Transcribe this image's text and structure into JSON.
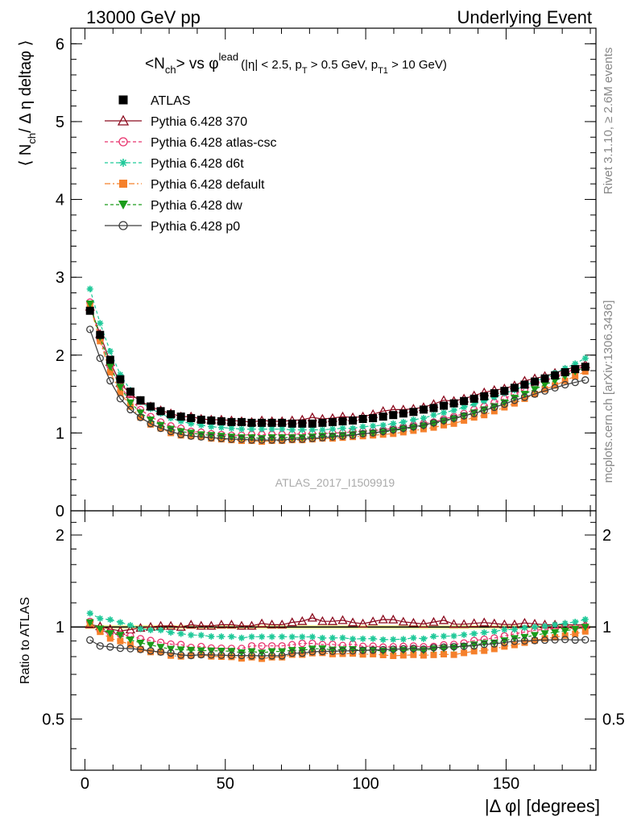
{
  "header": {
    "left": "13000 GeV pp",
    "right": "Underlying Event"
  },
  "side_labels": {
    "rivet": "Rivet 3.1.10, ≥ 2.6M events",
    "mcplots": "mcplots.cern.ch [arXiv:1306.3436]"
  },
  "analysis_id": "ATLAS_2017_I1509919",
  "colors": {
    "ATLAS": "#000000",
    "370": "#8b0a1e",
    "atlas-csc": "#e8336d",
    "d6t": "#1fc999",
    "default": "#f5802b",
    "dw": "#1a9c1a",
    "p0": "#3c3c3c",
    "band": "#f4f5a0"
  },
  "chart_data": [
    {
      "type": "scatter",
      "panel": "main",
      "title_main": "<N",
      "title_sub": "ch",
      "title_mid": "> vs φ",
      "title_sup": "lead",
      "title_cuts": "(|η| < 2.5, p",
      "title_cuts_sub1": "T",
      "title_cuts_mid": " > 0.5 GeV, p",
      "title_cuts_sub2": "T1",
      "title_cuts_end": " > 10 GeV)",
      "ylabel_a": "⟨ N",
      "ylabel_sub": "ch",
      "ylabel_b": "/ Δ η deltaφ ⟩",
      "xlim": [
        -5,
        182
      ],
      "ylim": [
        0,
        6.2
      ],
      "yticks": [
        0,
        1,
        2,
        3,
        4,
        5,
        6
      ],
      "xticks": [
        0,
        50,
        100,
        150
      ],
      "x": [
        1.8,
        5.4,
        9.0,
        12.6,
        16.2,
        19.8,
        23.4,
        27.0,
        30.6,
        34.2,
        37.8,
        41.4,
        45.0,
        48.6,
        52.2,
        55.8,
        59.4,
        63.0,
        66.6,
        70.2,
        73.8,
        77.4,
        81.0,
        84.6,
        88.2,
        91.8,
        95.4,
        99.0,
        102.6,
        106.2,
        109.8,
        113.4,
        117.0,
        120.6,
        124.2,
        127.8,
        131.4,
        135.0,
        138.6,
        142.2,
        145.8,
        149.4,
        153.0,
        156.6,
        160.2,
        163.8,
        167.4,
        171.0,
        174.6,
        178.2
      ],
      "legend": [
        "ATLAS",
        "Pythia 6.428 370",
        "Pythia 6.428 atlas-csc",
        "Pythia 6.428 d6t",
        "Pythia 6.428 default",
        "Pythia 6.428 dw",
        "Pythia 6.428 p0"
      ],
      "series": [
        {
          "key": "ATLAS",
          "marker": "square",
          "linestyle": "none",
          "values": [
            2.57,
            2.26,
            1.94,
            1.69,
            1.53,
            1.42,
            1.34,
            1.28,
            1.24,
            1.21,
            1.19,
            1.17,
            1.16,
            1.15,
            1.14,
            1.14,
            1.13,
            1.13,
            1.13,
            1.13,
            1.12,
            1.12,
            1.12,
            1.13,
            1.14,
            1.15,
            1.16,
            1.18,
            1.19,
            1.21,
            1.23,
            1.25,
            1.27,
            1.3,
            1.32,
            1.35,
            1.38,
            1.41,
            1.44,
            1.47,
            1.51,
            1.54,
            1.58,
            1.62,
            1.66,
            1.7,
            1.74,
            1.78,
            1.82,
            1.85
          ]
        },
        {
          "key": "370",
          "marker": "triangle",
          "linestyle": "solid",
          "values": [
            2.62,
            2.27,
            1.91,
            1.64,
            1.5,
            1.41,
            1.34,
            1.29,
            1.25,
            1.21,
            1.21,
            1.18,
            1.17,
            1.17,
            1.16,
            1.15,
            1.14,
            1.16,
            1.15,
            1.15,
            1.16,
            1.17,
            1.2,
            1.18,
            1.19,
            1.21,
            1.2,
            1.21,
            1.24,
            1.28,
            1.3,
            1.3,
            1.31,
            1.33,
            1.37,
            1.42,
            1.41,
            1.44,
            1.48,
            1.52,
            1.55,
            1.57,
            1.61,
            1.67,
            1.7,
            1.73,
            1.77,
            1.81,
            1.85,
            1.88
          ]
        },
        {
          "key": "atlas-csc",
          "marker": "circle",
          "linestyle": "dashed",
          "values": [
            2.68,
            2.2,
            1.86,
            1.6,
            1.43,
            1.3,
            1.21,
            1.14,
            1.09,
            1.06,
            1.02,
            1.01,
            0.99,
            0.98,
            0.97,
            0.97,
            0.98,
            0.98,
            0.98,
            0.98,
            0.98,
            0.99,
            0.99,
            0.99,
            1.0,
            1.0,
            1.02,
            1.02,
            1.03,
            1.04,
            1.06,
            1.08,
            1.1,
            1.12,
            1.14,
            1.18,
            1.21,
            1.25,
            1.3,
            1.34,
            1.39,
            1.44,
            1.5,
            1.56,
            1.62,
            1.67,
            1.72,
            1.77,
            1.82,
            1.86
          ]
        },
        {
          "key": "d6t",
          "marker": "star",
          "linestyle": "dashed",
          "values": [
            2.85,
            2.41,
            2.05,
            1.75,
            1.55,
            1.4,
            1.31,
            1.25,
            1.19,
            1.15,
            1.12,
            1.1,
            1.08,
            1.07,
            1.06,
            1.05,
            1.05,
            1.05,
            1.05,
            1.05,
            1.04,
            1.04,
            1.04,
            1.04,
            1.05,
            1.06,
            1.06,
            1.08,
            1.09,
            1.1,
            1.12,
            1.14,
            1.17,
            1.19,
            1.23,
            1.26,
            1.29,
            1.33,
            1.37,
            1.41,
            1.46,
            1.51,
            1.55,
            1.61,
            1.66,
            1.71,
            1.77,
            1.83,
            1.89,
            1.96
          ]
        },
        {
          "key": "default",
          "marker": "square",
          "linestyle": "dashdot",
          "values": [
            2.64,
            2.18,
            1.78,
            1.52,
            1.34,
            1.2,
            1.11,
            1.06,
            1.0,
            0.97,
            0.96,
            0.95,
            0.93,
            0.92,
            0.91,
            0.9,
            0.9,
            0.89,
            0.9,
            0.9,
            0.91,
            0.91,
            0.92,
            0.93,
            0.93,
            0.94,
            0.95,
            0.96,
            0.97,
            0.98,
            0.99,
            1.01,
            1.03,
            1.05,
            1.07,
            1.1,
            1.12,
            1.16,
            1.2,
            1.23,
            1.28,
            1.33,
            1.38,
            1.44,
            1.5,
            1.56,
            1.61,
            1.67,
            1.73,
            1.79
          ]
        },
        {
          "key": "dw",
          "marker": "triangle-down",
          "linestyle": "dashed",
          "values": [
            2.66,
            2.23,
            1.85,
            1.59,
            1.39,
            1.26,
            1.17,
            1.1,
            1.05,
            1.02,
            1.0,
            0.98,
            0.97,
            0.96,
            0.95,
            0.94,
            0.94,
            0.93,
            0.94,
            0.94,
            0.94,
            0.94,
            0.95,
            0.96,
            0.96,
            0.97,
            0.98,
            0.99,
            1.0,
            1.01,
            1.03,
            1.05,
            1.07,
            1.09,
            1.12,
            1.15,
            1.18,
            1.22,
            1.26,
            1.3,
            1.34,
            1.39,
            1.45,
            1.5,
            1.56,
            1.62,
            1.67,
            1.73,
            1.79,
            1.85
          ]
        },
        {
          "key": "p0",
          "marker": "circle",
          "linestyle": "solid",
          "values": [
            2.33,
            1.96,
            1.67,
            1.44,
            1.3,
            1.2,
            1.12,
            1.06,
            1.02,
            0.98,
            0.96,
            0.95,
            0.94,
            0.93,
            0.92,
            0.92,
            0.91,
            0.91,
            0.91,
            0.91,
            0.92,
            0.92,
            0.93,
            0.94,
            0.95,
            0.96,
            0.97,
            0.99,
            1.0,
            1.02,
            1.04,
            1.06,
            1.08,
            1.1,
            1.13,
            1.16,
            1.19,
            1.22,
            1.25,
            1.29,
            1.33,
            1.37,
            1.42,
            1.46,
            1.5,
            1.54,
            1.58,
            1.62,
            1.65,
            1.68
          ]
        }
      ]
    },
    {
      "type": "scatter",
      "panel": "ratio",
      "ylabel": "Ratio to ATLAS",
      "xlabel": "|Δ φ| [degrees]",
      "xlim": [
        -5,
        182
      ],
      "ylim": [
        0.34,
        2.4
      ],
      "ytick_labels": [
        "0.5",
        "1",
        "2"
      ],
      "yticks": [
        0.5,
        1,
        2
      ],
      "xticks": [
        0,
        50,
        100,
        150
      ],
      "xtick_labels": [
        "0",
        "50",
        "100",
        "150"
      ],
      "band": 0.015,
      "series_keys": [
        "370",
        "atlas-csc",
        "d6t",
        "default",
        "dw",
        "p0"
      ]
    }
  ]
}
